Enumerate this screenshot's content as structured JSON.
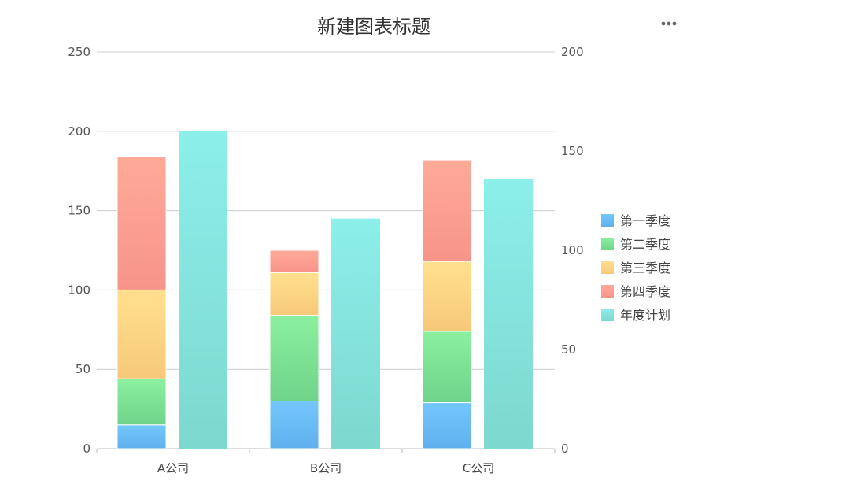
{
  "chart_data": {
    "type": "bar",
    "title": "新建图表标题",
    "categories": [
      "A公司",
      "B公司",
      "C公司"
    ],
    "stacked_series": [
      {
        "name": "第一季度",
        "values": [
          15,
          30,
          29
        ],
        "color_top": "#74c7fb",
        "color_bottom": "#5fb0ee"
      },
      {
        "name": "第二季度",
        "values": [
          29,
          54,
          45
        ],
        "color_top": "#8cf0a0",
        "color_bottom": "#6fd38a"
      },
      {
        "name": "第三季度",
        "values": [
          56,
          27,
          44
        ],
        "color_top": "#ffe08e",
        "color_bottom": "#f7c97a"
      },
      {
        "name": "第四季度",
        "values": [
          84,
          14,
          64
        ],
        "color_top": "#ffaa99",
        "color_bottom": "#f7948a"
      }
    ],
    "plan_series": {
      "name": "年度计划",
      "values": [
        160,
        116,
        136
      ],
      "axis": "right",
      "color_top": "#8cefe9",
      "color_bottom": "#7dd8cf"
    },
    "left_axis": {
      "min": 0,
      "max": 250,
      "ticks": [
        "0",
        "50",
        "100",
        "150",
        "200",
        "250"
      ]
    },
    "right_axis": {
      "min": 0,
      "max": 200,
      "ticks": [
        "0",
        "50",
        "100",
        "150",
        "200"
      ]
    },
    "grid": true,
    "legend_position": "right"
  },
  "toolbar": {
    "menu_icon": "more-horizontal-icon"
  }
}
